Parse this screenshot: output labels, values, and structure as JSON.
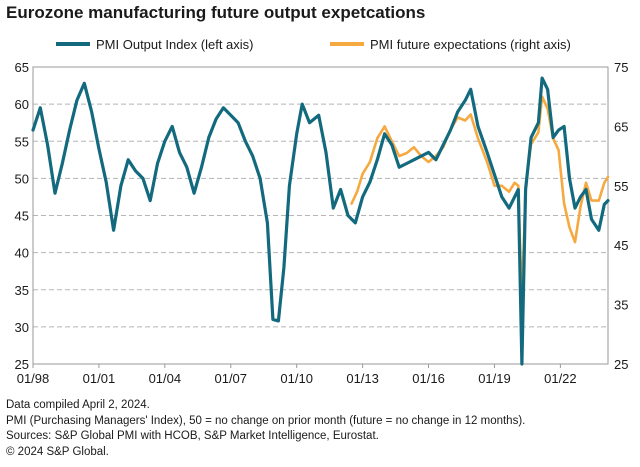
{
  "title": "Eurozone manufacturing future output expetcations",
  "footer": {
    "line1": "Data compiled April 2, 2024.",
    "line2": "PMI (Purchasing Managers' Index), 50 = no change on prior month (future = no change in 12 months).",
    "line3": "Sources: S&P Global PMI with HCOB, S&P Market Intelligence, Eurostat.",
    "line4": "© 2024 S&P Global."
  },
  "colors": {
    "output": "#136a7e",
    "expectations": "#f5a940",
    "axis": "#999999",
    "grid": "#b5b5b5"
  },
  "chart_data": {
    "type": "line",
    "title": "Eurozone manufacturing future output expetcations",
    "x_ticks": [
      "01/98",
      "01/01",
      "01/04",
      "01/07",
      "01/10",
      "01/13",
      "01/16",
      "01/19",
      "01/22"
    ],
    "x_range": [
      "1998-01",
      "2024-03"
    ],
    "y_left": {
      "range": [
        25,
        65
      ],
      "ticks": [
        25,
        30,
        35,
        40,
        45,
        50,
        55,
        60,
        65
      ]
    },
    "y_right": {
      "range": [
        25,
        75
      ],
      "ticks": [
        25,
        35,
        45,
        55,
        65,
        75
      ]
    },
    "legend_position": "top",
    "grid": "dashed horizontal",
    "series": [
      {
        "name": "PMI Output Index (left axis)",
        "axis": "left",
        "points": [
          [
            "1998-01",
            56.5
          ],
          [
            "1998-05",
            59.5
          ],
          [
            "1998-09",
            54.5
          ],
          [
            "1999-01",
            48.0
          ],
          [
            "1999-05",
            52.0
          ],
          [
            "1999-09",
            56.5
          ],
          [
            "2000-01",
            60.5
          ],
          [
            "2000-05",
            62.8
          ],
          [
            "2000-09",
            59.0
          ],
          [
            "2001-01",
            54.0
          ],
          [
            "2001-05",
            49.5
          ],
          [
            "2001-09",
            43.0
          ],
          [
            "2002-01",
            49.0
          ],
          [
            "2002-05",
            52.5
          ],
          [
            "2002-09",
            51.0
          ],
          [
            "2003-01",
            50.0
          ],
          [
            "2003-05",
            47.0
          ],
          [
            "2003-09",
            52.0
          ],
          [
            "2004-01",
            55.0
          ],
          [
            "2004-05",
            57.0
          ],
          [
            "2004-09",
            53.5
          ],
          [
            "2005-01",
            51.5
          ],
          [
            "2005-05",
            48.0
          ],
          [
            "2005-09",
            51.5
          ],
          [
            "2006-01",
            55.5
          ],
          [
            "2006-05",
            58.0
          ],
          [
            "2006-09",
            59.5
          ],
          [
            "2007-01",
            58.5
          ],
          [
            "2007-05",
            57.5
          ],
          [
            "2007-09",
            55.0
          ],
          [
            "2008-01",
            53.0
          ],
          [
            "2008-05",
            50.0
          ],
          [
            "2008-09",
            44.0
          ],
          [
            "2008-12",
            31.0
          ],
          [
            "2009-03",
            30.8
          ],
          [
            "2009-06",
            38.0
          ],
          [
            "2009-09",
            49.0
          ],
          [
            "2010-01",
            56.0
          ],
          [
            "2010-04",
            60.0
          ],
          [
            "2010-08",
            57.5
          ],
          [
            "2011-01",
            58.5
          ],
          [
            "2011-05",
            53.5
          ],
          [
            "2011-09",
            46.0
          ],
          [
            "2012-01",
            48.5
          ],
          [
            "2012-05",
            45.0
          ],
          [
            "2012-09",
            44.0
          ],
          [
            "2013-01",
            47.5
          ],
          [
            "2013-05",
            49.5
          ],
          [
            "2013-09",
            52.5
          ],
          [
            "2014-01",
            56.0
          ],
          [
            "2014-05",
            54.5
          ],
          [
            "2014-09",
            51.5
          ],
          [
            "2015-01",
            52.0
          ],
          [
            "2015-05",
            52.5
          ],
          [
            "2015-09",
            53.0
          ],
          [
            "2016-01",
            53.5
          ],
          [
            "2016-05",
            52.5
          ],
          [
            "2016-09",
            54.5
          ],
          [
            "2017-01",
            56.5
          ],
          [
            "2017-05",
            59.0
          ],
          [
            "2017-09",
            60.5
          ],
          [
            "2017-12",
            62.0
          ],
          [
            "2018-04",
            57.0
          ],
          [
            "2018-09",
            53.5
          ],
          [
            "2019-01",
            50.5
          ],
          [
            "2019-05",
            47.5
          ],
          [
            "2019-09",
            46.0
          ],
          [
            "2019-12",
            47.5
          ],
          [
            "2020-02",
            48.5
          ],
          [
            "2020-04",
            18.0
          ],
          [
            "2020-06",
            48.5
          ],
          [
            "2020-09",
            55.5
          ],
          [
            "2021-01",
            57.5
          ],
          [
            "2021-03",
            63.5
          ],
          [
            "2021-06",
            62.0
          ],
          [
            "2021-09",
            55.5
          ],
          [
            "2021-12",
            56.5
          ],
          [
            "2022-03",
            57.0
          ],
          [
            "2022-06",
            50.0
          ],
          [
            "2022-09",
            46.0
          ],
          [
            "2022-12",
            47.5
          ],
          [
            "2023-03",
            48.5
          ],
          [
            "2023-06",
            44.5
          ],
          [
            "2023-10",
            43.0
          ],
          [
            "2024-01",
            46.5
          ],
          [
            "2024-03",
            47.0
          ]
        ]
      },
      {
        "name": "PMI future expectations (right axis)",
        "axis": "right",
        "points": [
          [
            "2012-07",
            52.0
          ],
          [
            "2012-10",
            54.0
          ],
          [
            "2013-01",
            57.0
          ],
          [
            "2013-05",
            59.0
          ],
          [
            "2013-09",
            63.0
          ],
          [
            "2014-01",
            65.0
          ],
          [
            "2014-05",
            62.5
          ],
          [
            "2014-09",
            60.0
          ],
          [
            "2015-01",
            60.5
          ],
          [
            "2015-05",
            61.5
          ],
          [
            "2015-09",
            60.0
          ],
          [
            "2016-01",
            59.0
          ],
          [
            "2016-05",
            60.0
          ],
          [
            "2016-09",
            61.5
          ],
          [
            "2017-01",
            64.5
          ],
          [
            "2017-05",
            66.5
          ],
          [
            "2017-09",
            66.0
          ],
          [
            "2017-12",
            67.0
          ],
          [
            "2018-04",
            63.0
          ],
          [
            "2018-09",
            59.0
          ],
          [
            "2019-01",
            55.0
          ],
          [
            "2019-05",
            55.0
          ],
          [
            "2019-09",
            54.0
          ],
          [
            "2019-12",
            55.5
          ],
          [
            "2020-02",
            55.0
          ],
          [
            "2020-04",
            35.0
          ],
          [
            "2020-06",
            55.0
          ],
          [
            "2020-09",
            62.0
          ],
          [
            "2021-01",
            64.0
          ],
          [
            "2021-03",
            70.0
          ],
          [
            "2021-06",
            68.0
          ],
          [
            "2021-09",
            63.0
          ],
          [
            "2021-12",
            61.0
          ],
          [
            "2022-03",
            52.0
          ],
          [
            "2022-06",
            48.0
          ],
          [
            "2022-09",
            45.5
          ],
          [
            "2022-12",
            51.5
          ],
          [
            "2023-03",
            55.5
          ],
          [
            "2023-06",
            52.5
          ],
          [
            "2023-10",
            52.5
          ],
          [
            "2024-01",
            55.5
          ],
          [
            "2024-03",
            56.5
          ]
        ]
      }
    ]
  }
}
